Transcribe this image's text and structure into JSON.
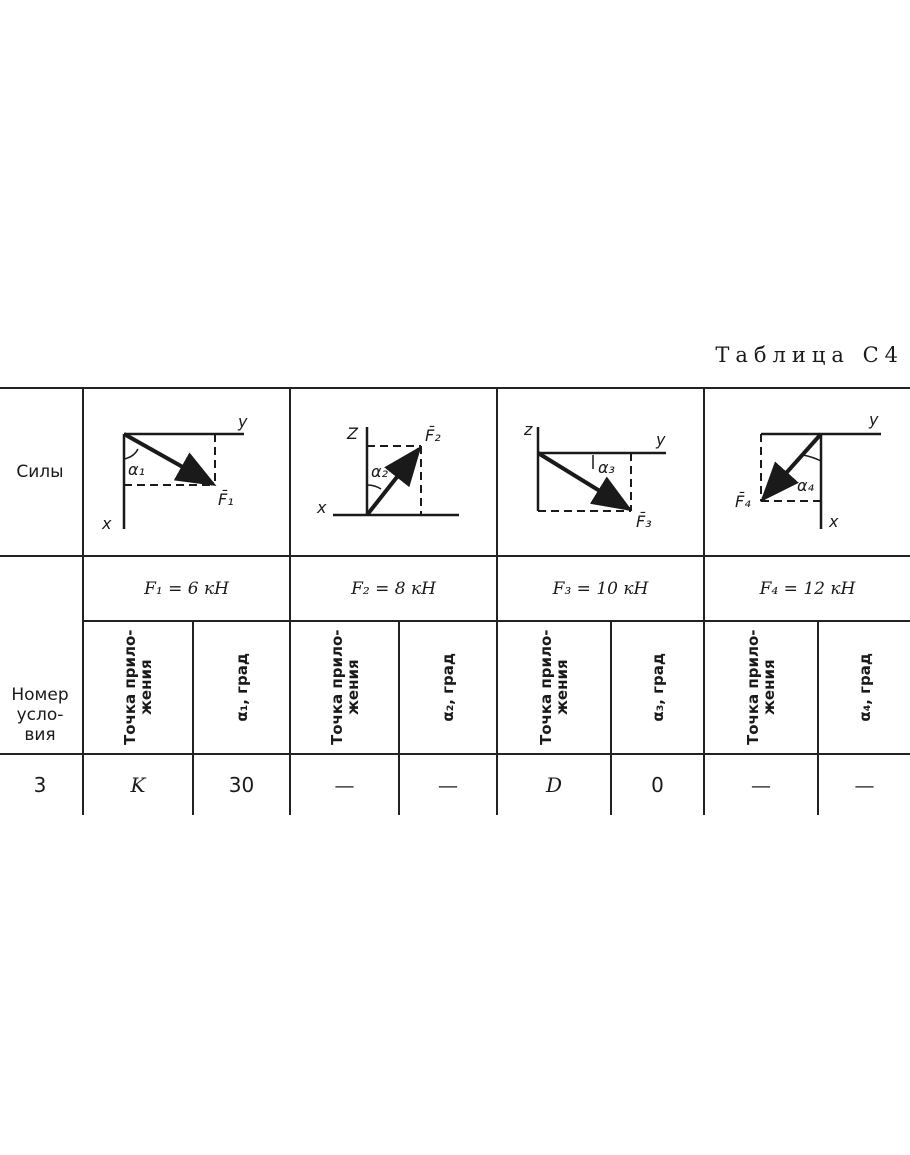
{
  "title": "Таблица С4",
  "header": {
    "forces_label": "Силы",
    "condition_label": "Номер усло- вия",
    "point_label": "Точка прило- жения",
    "angle_unit": "град"
  },
  "forces": [
    {
      "name": "F1",
      "value_label": "F₁ = 6 кН",
      "angle_header": "α₁, град",
      "axis_a": "y",
      "axis_b": "x",
      "angle": "α₁",
      "vector": "F̄₁"
    },
    {
      "name": "F2",
      "value_label": "F₂ = 8 кН",
      "angle_header": "α₂, град",
      "axis_a": "Z",
      "axis_b": "x",
      "angle": "α₂",
      "vector": "F̄₂"
    },
    {
      "name": "F3",
      "value_label": "F₃ = 10 кН",
      "angle_header": "α₃, град",
      "axis_a": "z",
      "axis_b": "y",
      "angle": "α₃",
      "vector": "F̄₃"
    },
    {
      "name": "F4",
      "value_label": "F₄ = 12 кН",
      "angle_header": "α₄, град",
      "axis_a": "y",
      "axis_b": "x",
      "angle": "α₄",
      "vector": "F̄₄"
    }
  ],
  "rows": [
    {
      "number": "3",
      "cells": [
        "K",
        "30",
        "—",
        "—",
        "D",
        "0",
        "—",
        "—"
      ]
    }
  ]
}
